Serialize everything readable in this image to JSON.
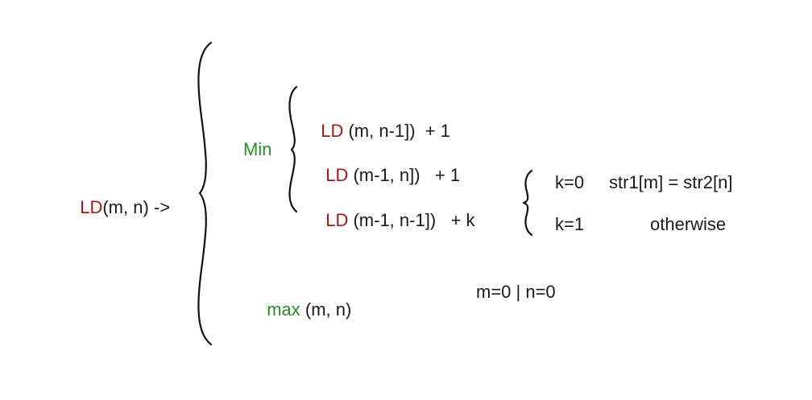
{
  "lhs": {
    "ld": "LD",
    "args": "(m, n) ->"
  },
  "min_label": "Min",
  "min_terms": [
    {
      "ld": "LD",
      "rest": " (m, n-1])  + 1"
    },
    {
      "ld": "LD",
      "rest": " (m-1, n])   + 1"
    },
    {
      "ld": "LD",
      "rest": " (m-1, n-1])   + k"
    }
  ],
  "k_cases": [
    {
      "value": "k=0",
      "condition": "str1[m] = str2[n]"
    },
    {
      "value": "k=1",
      "condition": "otherwise"
    }
  ],
  "max_label": "max",
  "max_args": " (m, n)",
  "max_condition": "m=0 | n=0",
  "colors": {
    "ld": "#a11a1a",
    "func": "#2b8a2b",
    "text": "#1a1a1a"
  }
}
